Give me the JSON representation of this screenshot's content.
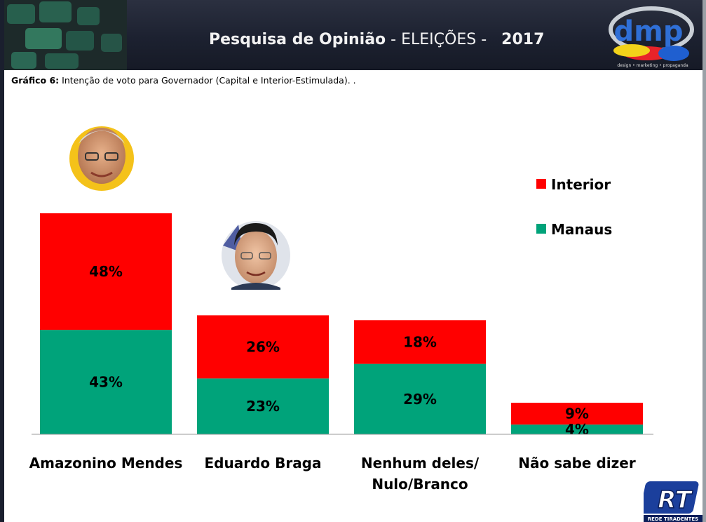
{
  "header": {
    "title_bold": "Pesquisa de Opinião",
    "title_light": " - ELEIÇÕES - ",
    "year": "2017",
    "logo_text": "dmp",
    "logo_tagline": "design • marketing • propaganda"
  },
  "subtitle": {
    "prefix": "Gráfico 6:",
    "text": " Intenção de voto para Governador (Capital e Interior-Estimulada). ."
  },
  "watermark": {
    "logo_text": "RT",
    "caption": "REDE TIRADENTES"
  },
  "colors": {
    "interior": "#ff0000",
    "manaus": "#00a37a"
  },
  "chart_data": {
    "type": "bar",
    "stacked": true,
    "categories": [
      "Amazonino Mendes",
      "Eduardo Braga",
      "Nenhum deles/ Nulo/Branco",
      "Não sabe dizer"
    ],
    "category_lines": [
      [
        "Amazonino Mendes"
      ],
      [
        "Eduardo Braga"
      ],
      [
        "Nenhum deles/",
        "Nulo/Branco"
      ],
      [
        "Não sabe dizer"
      ]
    ],
    "series": [
      {
        "name": "Manaus",
        "values": [
          43,
          23,
          29,
          4
        ],
        "labels": [
          "43%",
          "23%",
          "29%",
          "4%"
        ]
      },
      {
        "name": "Interior",
        "values": [
          48,
          26,
          18,
          9
        ],
        "labels": [
          "48%",
          "26%",
          "18%",
          "9%"
        ]
      }
    ],
    "legend": [
      "Interior",
      "Manaus"
    ],
    "legend_position": "right",
    "ylim": [
      0,
      100
    ],
    "grid": false,
    "candidate_photos": [
      "Amazonino Mendes",
      "Eduardo Braga"
    ]
  }
}
